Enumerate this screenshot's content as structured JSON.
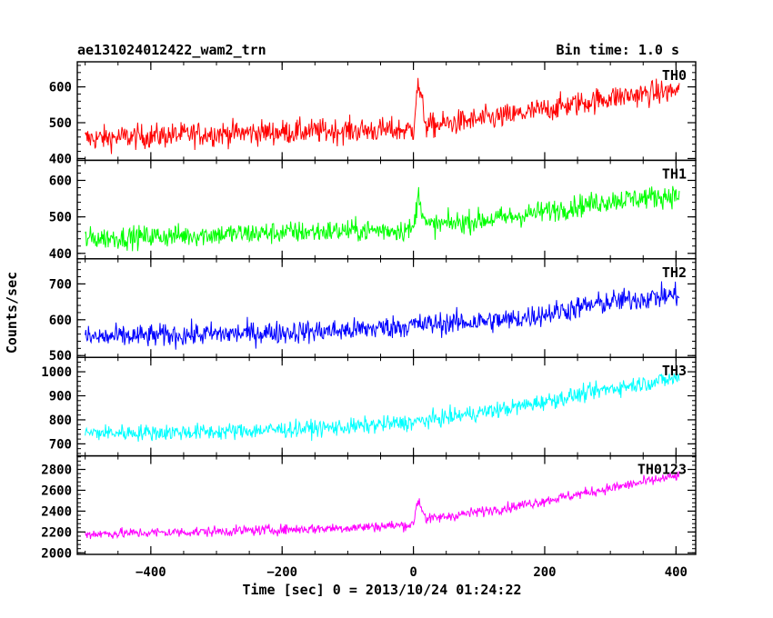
{
  "header": {
    "left_title": "ae131024012422_wam2_trn",
    "right_title": "Bin time: 1.0 s"
  },
  "chart_data": {
    "type": "line",
    "title": "ae131024012422_wam2_trn",
    "subtitle": "Bin time: 1.0 s",
    "xlabel": "Time [sec] 0 = 2013/10/24 01:24:22",
    "ylabel": "Counts/sec",
    "xlim": [
      -512,
      430
    ],
    "xticks": [
      -400,
      -200,
      0,
      200,
      400
    ],
    "xtick_labels": [
      "−400",
      "−200",
      "0",
      "200",
      "400"
    ],
    "bin_seconds": 1.0,
    "panels": [
      {
        "name": "TH0",
        "color": "#ff0000",
        "ylim": [
          395,
          670
        ],
        "yticks": [
          400,
          500,
          600
        ],
        "ytick_labels": [
          "400",
          "500",
          "600"
        ],
        "x": [
          -500,
          -300,
          -100,
          0,
          5,
          8,
          20,
          150,
          300,
          405
        ],
        "values": [
          455,
          470,
          478,
          480,
          590,
          600,
          490,
          520,
          570,
          590
        ],
        "noise": 45
      },
      {
        "name": "TH1",
        "color": "#00ff00",
        "ylim": [
          385,
          655
        ],
        "yticks": [
          400,
          500,
          600
        ],
        "ytick_labels": [
          "400",
          "500",
          "600"
        ],
        "x": [
          -500,
          -300,
          -100,
          0,
          5,
          8,
          20,
          150,
          300,
          405
        ],
        "values": [
          440,
          452,
          462,
          465,
          530,
          560,
          475,
          500,
          545,
          560
        ],
        "noise": 40
      },
      {
        "name": "TH2",
        "color": "#0000ff",
        "ylim": [
          495,
          770
        ],
        "yticks": [
          500,
          600,
          700
        ],
        "ytick_labels": [
          "500",
          "600",
          "700"
        ],
        "x": [
          -500,
          -300,
          -100,
          0,
          150,
          300,
          405
        ],
        "values": [
          550,
          560,
          570,
          585,
          600,
          650,
          670
        ],
        "noise": 42
      },
      {
        "name": "TH3",
        "color": "#00ffff",
        "ylim": [
          650,
          1060
        ],
        "yticks": [
          700,
          800,
          900,
          1000
        ],
        "ytick_labels": [
          "700",
          "800",
          "900",
          "1000"
        ],
        "x": [
          -500,
          -300,
          -100,
          0,
          150,
          300,
          405
        ],
        "values": [
          745,
          750,
          770,
          790,
          850,
          930,
          975
        ],
        "noise": 45
      },
      {
        "name": "TH0123",
        "color": "#ff00ff",
        "ylim": [
          1985,
          2930
        ],
        "yticks": [
          2000,
          2200,
          2400,
          2600,
          2800
        ],
        "ytick_labels": [
          "2000",
          "2200",
          "2400",
          "2600",
          "2800"
        ],
        "x": [
          -500,
          -300,
          -100,
          0,
          5,
          8,
          20,
          150,
          300,
          405
        ],
        "values": [
          2180,
          2205,
          2240,
          2270,
          2470,
          2500,
          2320,
          2440,
          2620,
          2740
        ],
        "noise": 65
      }
    ]
  }
}
